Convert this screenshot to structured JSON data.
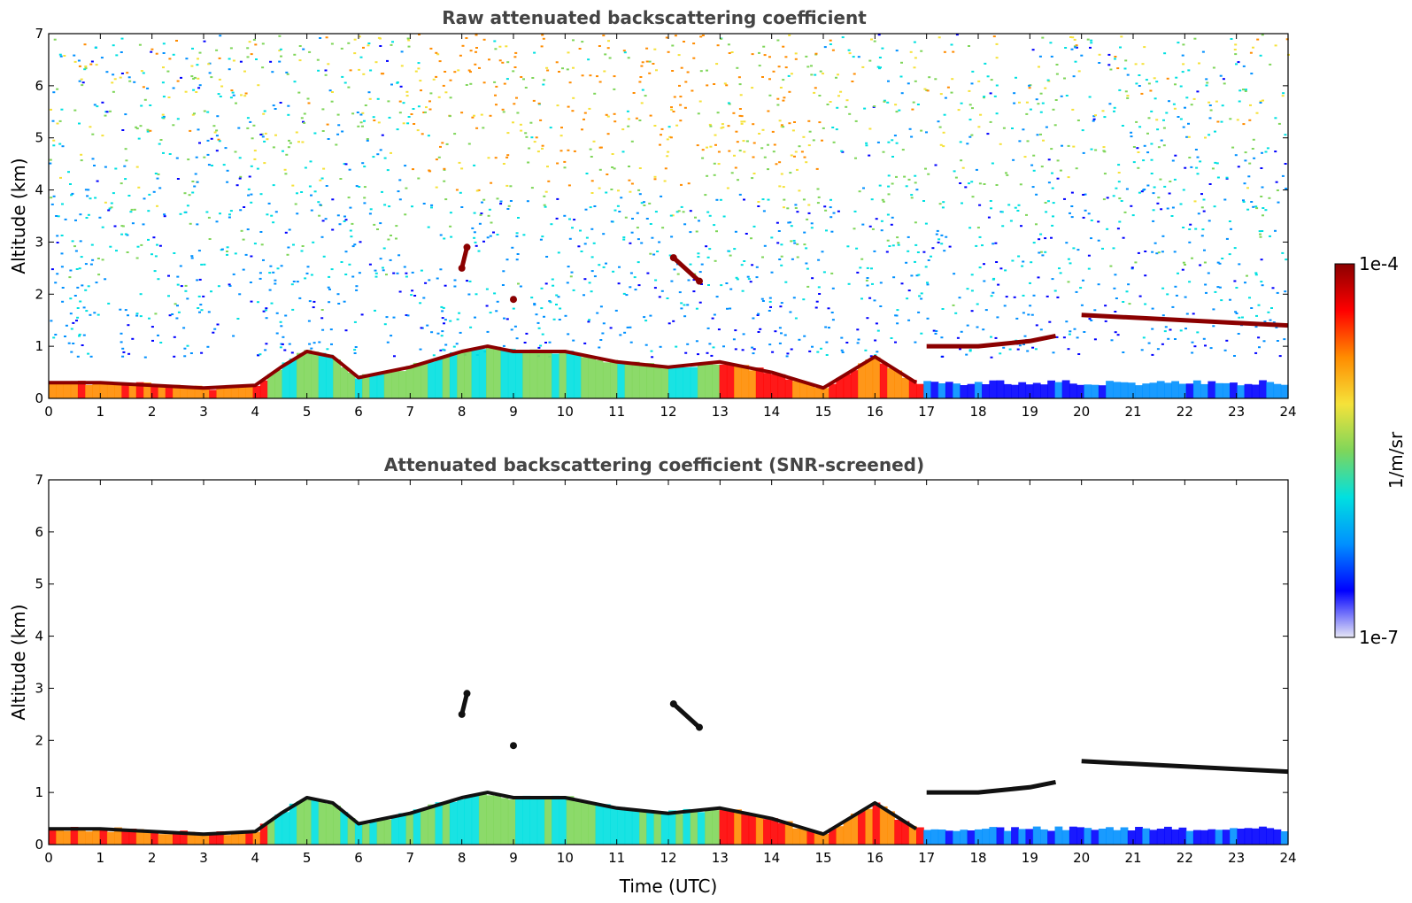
{
  "chart_data": [
    {
      "type": "heatmap",
      "title": "Raw attenuated backscattering coefficient",
      "xlabel": "",
      "ylabel": "Altitude (km)",
      "xlim": [
        0,
        24
      ],
      "ylim": [
        0,
        7
      ],
      "xticks": [
        "0",
        "1",
        "2",
        "3",
        "4",
        "5",
        "6",
        "7",
        "8",
        "9",
        "10",
        "11",
        "12",
        "13",
        "14",
        "15",
        "16",
        "17",
        "18",
        "19",
        "20",
        "21",
        "22",
        "23",
        "24"
      ],
      "yticks": [
        "0",
        "1",
        "2",
        "3",
        "4",
        "5",
        "6",
        "7"
      ],
      "grid": false,
      "screened": false,
      "layers": [
        {
          "feature": "boundary-layer aerosol top",
          "x": [
            0,
            1,
            2,
            3,
            4,
            4.5,
            5,
            5.5,
            6,
            7,
            8,
            8.5,
            9,
            10,
            11,
            12,
            13,
            14,
            15,
            16,
            16.8
          ],
          "y": [
            0.3,
            0.3,
            0.25,
            0.2,
            0.25,
            0.6,
            0.9,
            0.8,
            0.4,
            0.6,
            0.9,
            1.0,
            0.9,
            0.9,
            0.7,
            0.6,
            0.7,
            0.5,
            0.2,
            0.8,
            0.3
          ]
        },
        {
          "feature": "elevated layer",
          "x": [
            17,
            18,
            19,
            19.5
          ],
          "y": [
            1.0,
            1.0,
            1.1,
            1.2
          ]
        },
        {
          "feature": "elevated layer",
          "x": [
            20,
            21,
            22,
            23,
            24
          ],
          "y": [
            1.6,
            1.55,
            1.5,
            1.45,
            1.4
          ]
        },
        {
          "feature": "cloud",
          "x": [
            8.0,
            8.1
          ],
          "y": [
            2.5,
            2.9
          ]
        },
        {
          "feature": "cloud",
          "x": [
            12.1,
            12.6
          ],
          "y": [
            2.7,
            2.25
          ]
        },
        {
          "feature": "cloud",
          "x": [
            9.0
          ],
          "y": [
            1.9
          ]
        }
      ]
    },
    {
      "type": "heatmap",
      "title": "Attenuated backscattering coefficient (SNR-screened)",
      "xlabel": "Time (UTC)",
      "ylabel": "Altitude (km)",
      "xlim": [
        0,
        24
      ],
      "ylim": [
        0,
        7
      ],
      "xticks": [
        "0",
        "1",
        "2",
        "3",
        "4",
        "5",
        "6",
        "7",
        "8",
        "9",
        "10",
        "11",
        "12",
        "13",
        "14",
        "15",
        "16",
        "17",
        "18",
        "19",
        "20",
        "21",
        "22",
        "23",
        "24"
      ],
      "yticks": [
        "0",
        "1",
        "2",
        "3",
        "4",
        "5",
        "6",
        "7"
      ],
      "grid": false,
      "screened": true,
      "layers": [
        {
          "feature": "boundary-layer aerosol top",
          "x": [
            0,
            1,
            2,
            3,
            4,
            4.5,
            5,
            5.5,
            6,
            7,
            8,
            8.5,
            9,
            10,
            11,
            12,
            13,
            14,
            15,
            16,
            16.8
          ],
          "y": [
            0.3,
            0.3,
            0.25,
            0.2,
            0.25,
            0.6,
            0.9,
            0.8,
            0.4,
            0.6,
            0.9,
            1.0,
            0.9,
            0.9,
            0.7,
            0.6,
            0.7,
            0.5,
            0.2,
            0.8,
            0.3
          ]
        },
        {
          "feature": "elevated layer",
          "x": [
            17,
            18,
            19,
            19.5
          ],
          "y": [
            1.0,
            1.0,
            1.1,
            1.2
          ]
        },
        {
          "feature": "elevated layer",
          "x": [
            20,
            21,
            22,
            23,
            24
          ],
          "y": [
            1.6,
            1.55,
            1.5,
            1.45,
            1.4
          ]
        },
        {
          "feature": "cloud",
          "x": [
            8.0,
            8.1
          ],
          "y": [
            2.5,
            2.9
          ]
        },
        {
          "feature": "cloud",
          "x": [
            12.1,
            12.6
          ],
          "y": [
            2.7,
            2.25
          ]
        },
        {
          "feature": "cloud",
          "x": [
            9.0
          ],
          "y": [
            1.9
          ]
        }
      ]
    }
  ],
  "colorbar": {
    "label": "1/m/sr",
    "max_label": "1e-4",
    "min_label": "1e-7",
    "range": [
      1e-07,
      0.0001
    ],
    "scale": "log",
    "colormap": [
      "#e6e6f5",
      "#0000ff",
      "#0090ff",
      "#00e0e0",
      "#7fd65a",
      "#f5e23a",
      "#ff8c00",
      "#ff0000",
      "#8b0000"
    ]
  },
  "x_axis_label": "Time (UTC)"
}
